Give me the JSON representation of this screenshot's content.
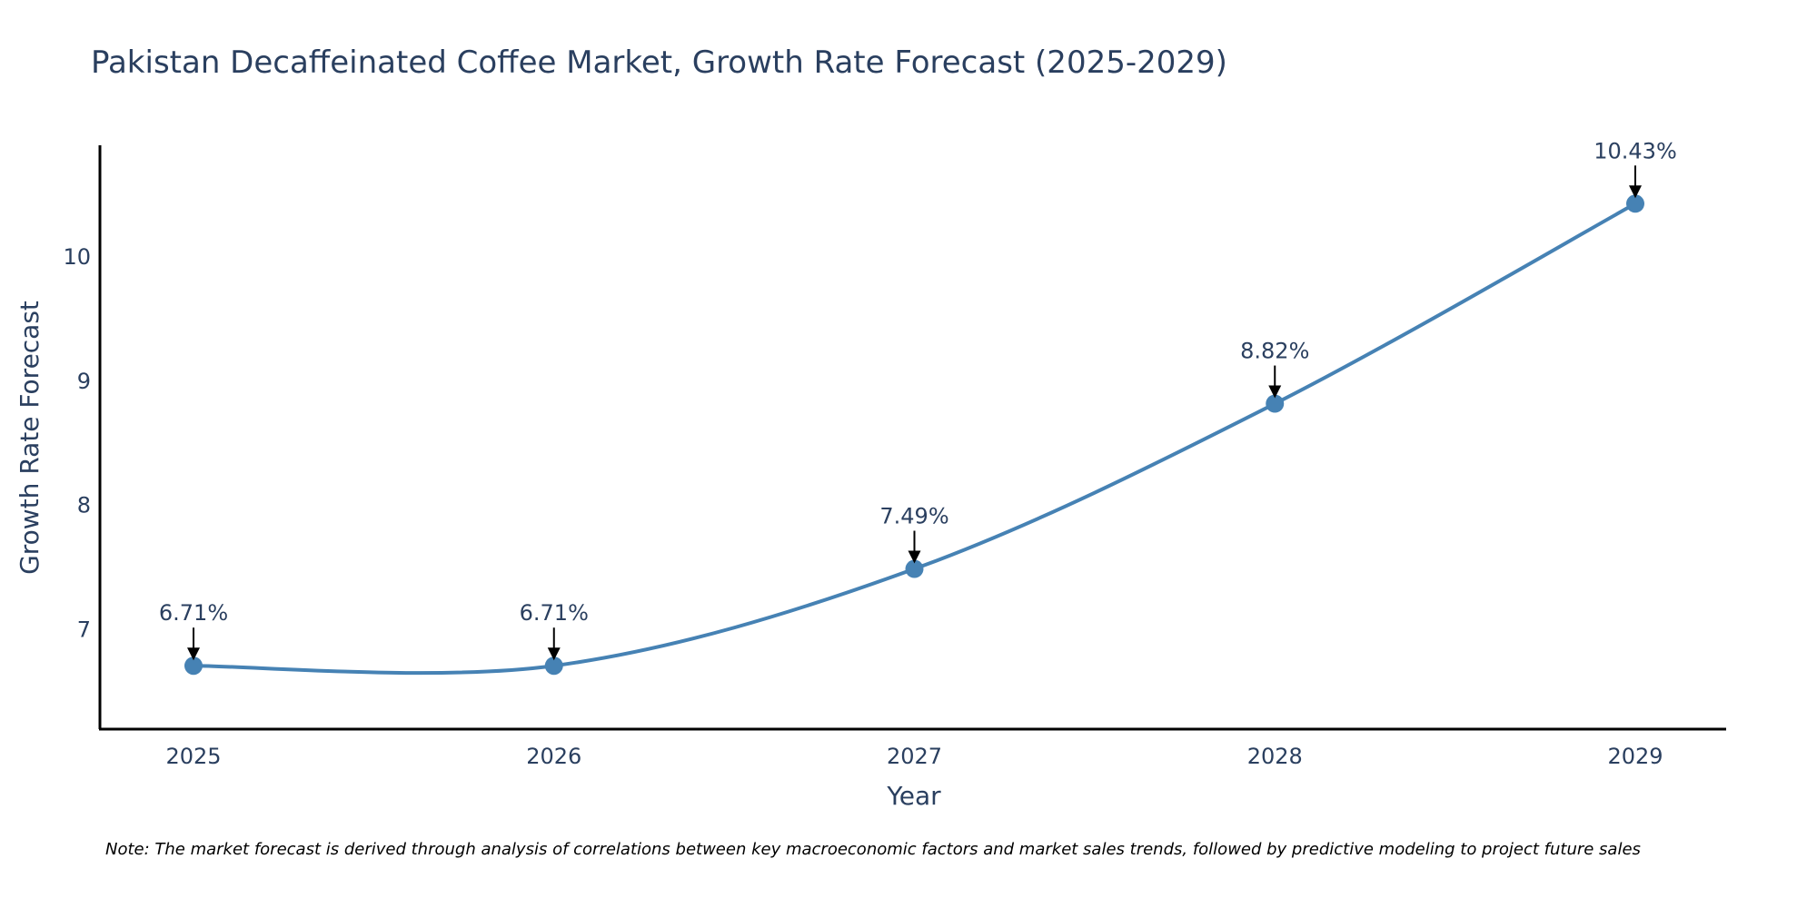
{
  "chart_data": {
    "type": "line",
    "title": "Pakistan Decaffeinated Coffee Market, Growth Rate Forecast (2025-2029)",
    "xlabel": "Year",
    "ylabel": "Growth Rate Forecast",
    "categories": [
      "2025",
      "2026",
      "2027",
      "2028",
      "2029"
    ],
    "series": [
      {
        "name": "Growth Rate Forecast",
        "values": [
          6.71,
          6.71,
          7.49,
          8.82,
          10.43
        ],
        "labels": [
          "6.71%",
          "6.71%",
          "7.49%",
          "8.82%",
          "10.43%"
        ]
      }
    ],
    "yticks": [
      "7",
      "8",
      "9",
      "10"
    ],
    "ylim": [
      6.2,
      10.9
    ],
    "grid": false,
    "note": "Note: The market forecast is derived through analysis of correlations between key macroeconomic factors and market sales trends, followed by predictive modeling to project future sales",
    "colors": {
      "line": "#4682b4",
      "text": "#2a3f5f",
      "axis": "#000000"
    }
  }
}
